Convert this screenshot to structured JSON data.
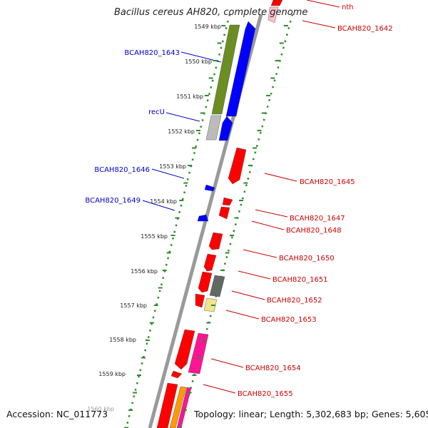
{
  "title": "Bacillus cereus AH820, complete genome",
  "footer": {
    "accession": "Accession: NC_011773",
    "summary": "Topology: linear; Length: 5,302,683 bp; Genes: 5,605"
  },
  "colors": {
    "forward_label": "#0000cc",
    "reverse_label": "#cc0000",
    "tick": "#2e8b2e",
    "backbone": "#9a9a9a"
  },
  "ticks": [
    "1549 kbp",
    "1550 kbp",
    "1551 kbp",
    "1552 kbp",
    "1553 kbp",
    "1554 kbp",
    "1555 kbp",
    "1556 kbp",
    "1557 kbp",
    "1558 kbp",
    "1559 kbp",
    "1560 kbp"
  ],
  "forward_labels": [
    "BCAH820_1643",
    "recU",
    "BCAH820_1646",
    "BCAH820_1649"
  ],
  "reverse_labels": [
    "nth",
    "BCAH820_1642",
    "BCAH820_1645",
    "BCAH820_1647",
    "BCAH820_1648",
    "BCAH820_1650",
    "BCAH820_1651",
    "BCAH820_1652",
    "BCAH820_1653",
    "BCAH820_1654",
    "BCAH820_1655"
  ]
}
